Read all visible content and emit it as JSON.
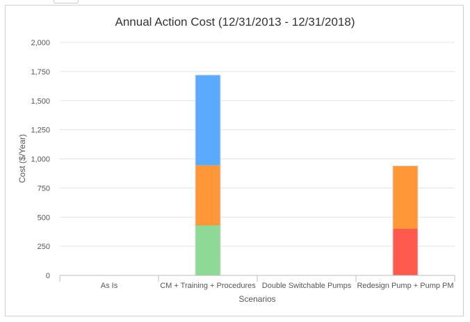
{
  "chart_data": {
    "type": "bar",
    "stacked": true,
    "title": "Annual Action Cost (12/31/2013 - 12/31/2018)",
    "xlabel": "Scenarios",
    "ylabel": "Cost ($/Year)",
    "ylim": [
      0,
      2000
    ],
    "yticks": [
      0,
      250,
      500,
      750,
      1000,
      1250,
      1500,
      1750,
      2000
    ],
    "ytick_labels": [
      "0",
      "250",
      "500",
      "750",
      "1,000",
      "1,250",
      "1,500",
      "1,750",
      "2,000"
    ],
    "grid": true,
    "legend": "none",
    "categories": [
      "As Is",
      "CM + Training + Procedures",
      "Double Switchable Pumps",
      "Redesign Pump + Pump PM"
    ],
    "series": [
      {
        "color": "#ff5a4e",
        "values": [
          0,
          0,
          0,
          400
        ]
      },
      {
        "color": "#8fd996",
        "values": [
          0,
          430,
          0,
          0
        ]
      },
      {
        "color": "#ff9638",
        "values": [
          0,
          515,
          0,
          540
        ]
      },
      {
        "color": "#5aabff",
        "values": [
          0,
          775,
          0,
          0
        ]
      }
    ]
  }
}
